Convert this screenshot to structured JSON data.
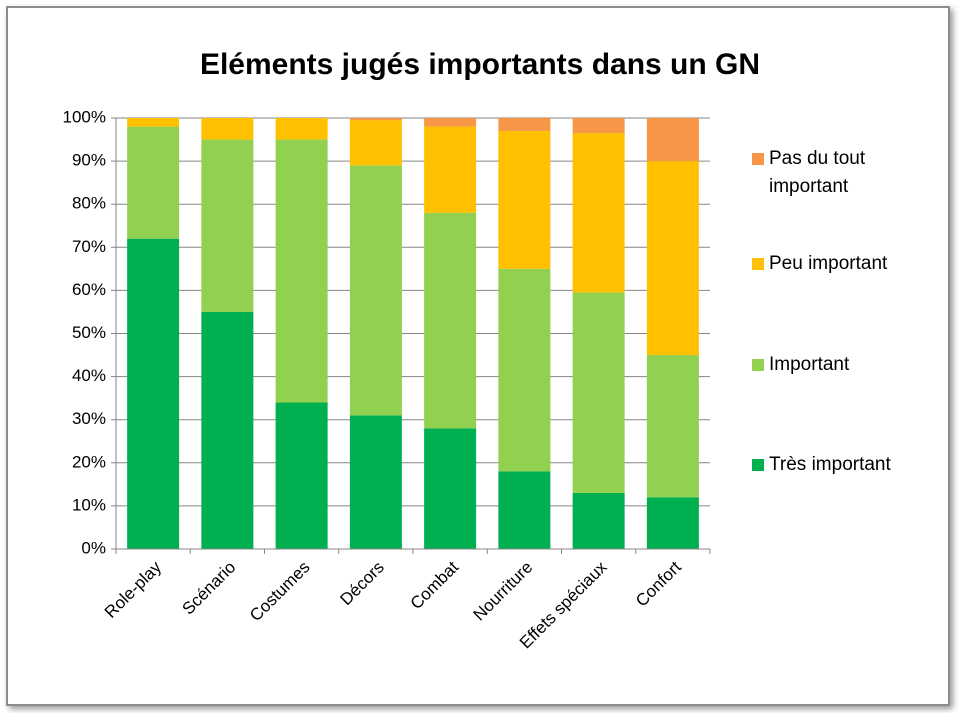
{
  "chart_data": {
    "type": "stacked_bar",
    "title": "Eléments jugés importants dans un GN",
    "categories": [
      "Role-play",
      "Scénario",
      "Costumes",
      "Décors",
      "Combat",
      "Nourriture",
      "Effets spéciaux",
      "Confort"
    ],
    "series": [
      {
        "name": "Très important",
        "color": "#00b050",
        "values": [
          72,
          55,
          34,
          31,
          28,
          18,
          13,
          12
        ]
      },
      {
        "name": "Important",
        "color": "#92d050",
        "values": [
          26,
          40,
          61,
          58,
          50,
          47,
          46.5,
          33
        ]
      },
      {
        "name": "Peu important",
        "color": "#ffc000",
        "values": [
          2,
          5,
          5,
          10.5,
          20,
          32,
          37,
          45
        ]
      },
      {
        "name": "Pas du tout important",
        "color": "#f79646",
        "values": [
          0,
          0,
          0,
          0.5,
          2,
          3,
          3.5,
          10
        ]
      }
    ],
    "ylim": [
      0,
      100
    ],
    "yticks": [
      {
        "value": 0,
        "label": "0%"
      },
      {
        "value": 10,
        "label": "10%"
      },
      {
        "value": 20,
        "label": "20%"
      },
      {
        "value": 30,
        "label": "30%"
      },
      {
        "value": 40,
        "label": "40%"
      },
      {
        "value": 50,
        "label": "50%"
      },
      {
        "value": 60,
        "label": "60%"
      },
      {
        "value": 70,
        "label": "70%"
      },
      {
        "value": 80,
        "label": "80%"
      },
      {
        "value": 90,
        "label": "90%"
      },
      {
        "value": 100,
        "label": "100%"
      }
    ],
    "grid": true,
    "legend": "right"
  }
}
